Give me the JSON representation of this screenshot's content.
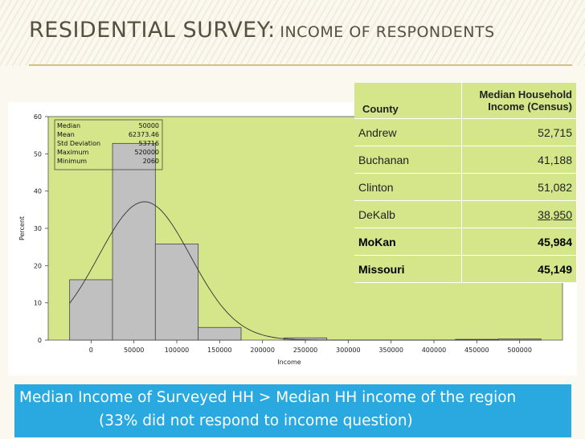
{
  "slide": {
    "title_main": "RESIDENTIAL SURVEY:",
    "title_sub": "INCOME OF RESPONDENTS"
  },
  "chart_data": {
    "type": "bar",
    "title": "",
    "xlabel": "Income",
    "ylabel": "Percent",
    "bin_edges": [
      -25000,
      25000,
      75000,
      125000,
      175000,
      225000,
      275000,
      325000,
      375000,
      425000,
      475000,
      525000
    ],
    "values": [
      16.2,
      52.8,
      25.8,
      3.4,
      0,
      0.6,
      0,
      0,
      0,
      0.2,
      0.3
    ],
    "xlim": [
      -50000,
      550000
    ],
    "ylim": [
      0,
      60
    ],
    "xticks": [
      "0",
      "50000",
      "100000",
      "150000",
      "200000",
      "250000",
      "300000",
      "350000",
      "400000",
      "450000",
      "500000"
    ],
    "yticks": [
      "0",
      "10",
      "20",
      "30",
      "40",
      "50",
      "60"
    ],
    "normal_curve": {
      "mean": 62373.46,
      "sd": 53716
    },
    "plot_bg": "#d4e58a",
    "bar_color": "#c0c0c0",
    "stats": [
      {
        "label": "Median",
        "value": "50000"
      },
      {
        "label": "Mean",
        "value": "62373.46"
      },
      {
        "label": "Std Deviation",
        "value": "53716"
      },
      {
        "label": "Maximum",
        "value": "520000"
      },
      {
        "label": "Minimum",
        "value": "2060"
      }
    ]
  },
  "table": {
    "header_county": "County",
    "header_income": "Median Household Income (Census)",
    "rows": [
      {
        "county": "Andrew",
        "income": "52,715"
      },
      {
        "county": "Buchanan",
        "income": "41,188"
      },
      {
        "county": "Clinton",
        "income": "51,082"
      },
      {
        "county": "DeKalb",
        "income": "38,950"
      },
      {
        "county": "MoKan",
        "income": "45,984"
      },
      {
        "county": "Missouri",
        "income": "45,149"
      }
    ]
  },
  "footer": {
    "line1": "Median Income of Surveyed HH > Median HH income of the region",
    "line2": "(33% did not respond to income question)"
  }
}
